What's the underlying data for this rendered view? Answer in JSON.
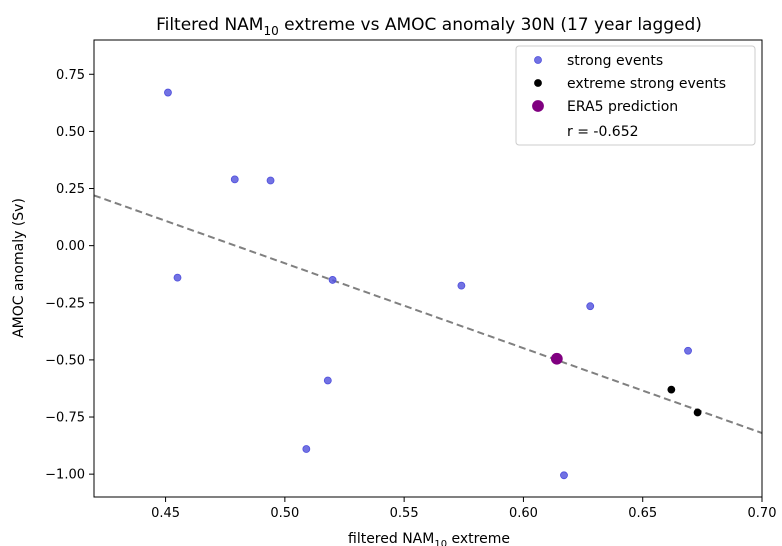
{
  "chart_data": {
    "type": "scatter",
    "title": {
      "prefix": "Filtered NAM",
      "sub": "10",
      "suffix": " extreme vs AMOC anomaly 30N (17 year lagged)"
    },
    "xlabel": {
      "prefix": "filtered NAM",
      "sub": "10",
      "suffix": " extreme"
    },
    "ylabel": "AMOC anomaly (Sv)",
    "xlim": [
      0.42,
      0.7
    ],
    "ylim": [
      -1.1,
      0.9
    ],
    "xticks": [
      0.45,
      0.5,
      0.55,
      0.6,
      0.65,
      0.7
    ],
    "xtick_labels": [
      "0.45",
      "0.50",
      "0.55",
      "0.60",
      "0.65",
      "0.70"
    ],
    "yticks": [
      0.75,
      0.5,
      0.25,
      0.0,
      -0.25,
      -0.5,
      -0.75,
      -1.0
    ],
    "ytick_labels": [
      "0.75",
      "0.50",
      "0.25",
      "0.00",
      "−0.25",
      "−0.50",
      "−0.75",
      "−1.00"
    ],
    "grid": false,
    "legend_position": "top-right",
    "series": [
      {
        "name": "strong events",
        "color": "#4f4fdc",
        "points": [
          [
            0.451,
            0.67
          ],
          [
            0.455,
            -0.14
          ],
          [
            0.479,
            0.29
          ],
          [
            0.494,
            0.285
          ],
          [
            0.509,
            -0.89
          ],
          [
            0.518,
            -0.59
          ],
          [
            0.52,
            -0.15
          ],
          [
            0.574,
            -0.175
          ],
          [
            0.617,
            -1.005
          ],
          [
            0.628,
            -0.265
          ],
          [
            0.669,
            -0.46
          ]
        ]
      },
      {
        "name": "extreme strong events",
        "color": "#000000",
        "points": [
          [
            0.662,
            -0.63
          ],
          [
            0.673,
            -0.73
          ]
        ]
      },
      {
        "name": "ERA5 prediction",
        "color": "#800080",
        "points": [
          [
            0.614,
            -0.495
          ]
        ]
      }
    ],
    "regression_line": {
      "color": "#808080",
      "style": "dashed",
      "start": [
        0.42,
        0.22
      ],
      "end": [
        0.7,
        -0.82
      ]
    },
    "annotation": "r = -0.652"
  }
}
